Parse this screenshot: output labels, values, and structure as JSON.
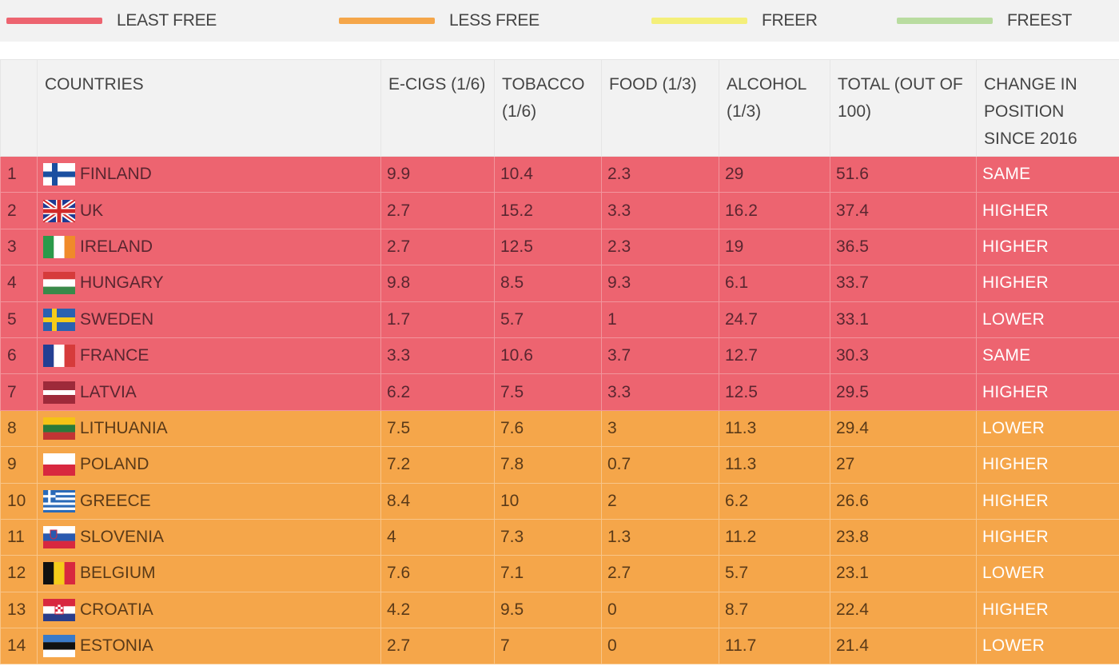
{
  "legend": {
    "items": [
      {
        "label": "LEAST FREE",
        "color": "#ed6470"
      },
      {
        "label": "LESS FREE",
        "color": "#f5a64a"
      },
      {
        "label": "FREER",
        "color": "#f4ef7a"
      },
      {
        "label": "FREEST",
        "color": "#b9dca0"
      }
    ]
  },
  "table": {
    "headers": {
      "rank": "",
      "countries": "COUNTRIES",
      "ecigs": "E-CIGS (1/6)",
      "tobacco": "TOBACCO (1/6)",
      "food": "FOOD (1/3)",
      "alcohol": "ALCOHOL (1/3)",
      "total": "TOTAL (OUT OF 100)",
      "change": "CHANGE IN POSITION SINCE 2016"
    },
    "rows": [
      {
        "rank": "1",
        "country": "FINLAND",
        "flag_icon": "finland-flag-icon",
        "ecigs": "9.9",
        "tobacco": "10.4",
        "food": "2.3",
        "alcohol": "29",
        "total": "51.6",
        "change": "SAME"
      },
      {
        "rank": "2",
        "country": "UK",
        "flag_icon": "uk-flag-icon",
        "ecigs": "2.7",
        "tobacco": "15.2",
        "food": "3.3",
        "alcohol": "16.2",
        "total": "37.4",
        "change": "HIGHER"
      },
      {
        "rank": "3",
        "country": "IRELAND",
        "flag_icon": "ireland-flag-icon",
        "ecigs": "2.7",
        "tobacco": "12.5",
        "food": "2.3",
        "alcohol": "19",
        "total": "36.5",
        "change": "HIGHER"
      },
      {
        "rank": "4",
        "country": "HUNGARY",
        "flag_icon": "hungary-flag-icon",
        "ecigs": "9.8",
        "tobacco": "8.5",
        "food": "9.3",
        "alcohol": "6.1",
        "total": "33.7",
        "change": "HIGHER"
      },
      {
        "rank": "5",
        "country": "SWEDEN",
        "flag_icon": "sweden-flag-icon",
        "ecigs": "1.7",
        "tobacco": "5.7",
        "food": "1",
        "alcohol": "24.7",
        "total": "33.1",
        "change": "LOWER"
      },
      {
        "rank": "6",
        "country": "FRANCE",
        "flag_icon": "france-flag-icon",
        "ecigs": "3.3",
        "tobacco": "10.6",
        "food": "3.7",
        "alcohol": "12.7",
        "total": "30.3",
        "change": "SAME"
      },
      {
        "rank": "7",
        "country": "LATVIA",
        "flag_icon": "latvia-flag-icon",
        "ecigs": "6.2",
        "tobacco": "7.5",
        "food": "3.3",
        "alcohol": "12.5",
        "total": "29.5",
        "change": "HIGHER"
      },
      {
        "rank": "8",
        "country": "LITHUANIA",
        "flag_icon": "lithuania-flag-icon",
        "ecigs": "7.5",
        "tobacco": "7.6",
        "food": "3",
        "alcohol": "11.3",
        "total": "29.4",
        "change": "LOWER"
      },
      {
        "rank": "9",
        "country": "POLAND",
        "flag_icon": "poland-flag-icon",
        "ecigs": "7.2",
        "tobacco": "7.8",
        "food": "0.7",
        "alcohol": "11.3",
        "total": "27",
        "change": "HIGHER"
      },
      {
        "rank": "10",
        "country": "GREECE",
        "flag_icon": "greece-flag-icon",
        "ecigs": "8.4",
        "tobacco": "10",
        "food": "2",
        "alcohol": "6.2",
        "total": "26.6",
        "change": "HIGHER"
      },
      {
        "rank": "11",
        "country": "SLOVENIA",
        "flag_icon": "slovenia-flag-icon",
        "ecigs": "4",
        "tobacco": "7.3",
        "food": "1.3",
        "alcohol": "11.2",
        "total": "23.8",
        "change": "HIGHER"
      },
      {
        "rank": "12",
        "country": "BELGIUM",
        "flag_icon": "belgium-flag-icon",
        "ecigs": "7.6",
        "tobacco": "7.1",
        "food": "2.7",
        "alcohol": "5.7",
        "total": "23.1",
        "change": "LOWER"
      },
      {
        "rank": "13",
        "country": "CROATIA",
        "flag_icon": "croatia-flag-icon",
        "ecigs": "4.2",
        "tobacco": "9.5",
        "food": "0",
        "alcohol": "8.7",
        "total": "22.4",
        "change": "HIGHER"
      },
      {
        "rank": "14",
        "country": "ESTONIA",
        "flag_icon": "estonia-flag-icon",
        "ecigs": "2.7",
        "tobacco": "7",
        "food": "0",
        "alcohol": "11.7",
        "total": "21.4",
        "change": "LOWER"
      }
    ]
  }
}
